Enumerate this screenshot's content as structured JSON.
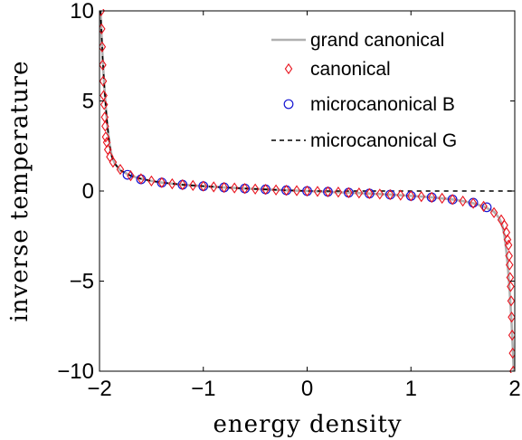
{
  "chart_data": {
    "type": "line",
    "xlabel": "energy density",
    "ylabel": "inverse temperature",
    "xlim": [
      -2,
      2
    ],
    "ylim": [
      -10,
      10
    ],
    "xticks": [
      -2,
      -1,
      0,
      1,
      2
    ],
    "xtick_labels": [
      "−2",
      "−1",
      "0",
      "1",
      "2"
    ],
    "yticks": [
      -10,
      -5,
      0,
      5,
      10
    ],
    "ytick_labels": [
      "−10",
      "−5",
      "0",
      "5",
      "10"
    ],
    "grid": false,
    "legend_position": "top-right",
    "series": [
      {
        "name": "grand canonical",
        "style": "solid-line",
        "color": "#b0b0b0",
        "x": [
          -1.99,
          -1.98,
          -1.97,
          -1.96,
          -1.95,
          -1.94,
          -1.93,
          -1.92,
          -1.91,
          -1.9,
          -1.88,
          -1.85,
          -1.8,
          -1.7,
          -1.6,
          -1.5,
          -1.4,
          -1.2,
          -1.0,
          -0.8,
          -0.6,
          -0.4,
          -0.2,
          0.0,
          0.2,
          0.4,
          0.6,
          0.8,
          1.0,
          1.2,
          1.4,
          1.5,
          1.6,
          1.7,
          1.8,
          1.85,
          1.88,
          1.9,
          1.91,
          1.92,
          1.93,
          1.94,
          1.95,
          1.96,
          1.97,
          1.98,
          1.99
        ],
        "y": [
          10.0,
          8.6,
          7.4,
          6.4,
          5.5,
          4.7,
          4.0,
          3.4,
          2.9,
          2.45,
          1.9,
          1.5,
          1.15,
          0.85,
          0.68,
          0.56,
          0.47,
          0.35,
          0.27,
          0.2,
          0.14,
          0.09,
          0.04,
          0.0,
          -0.04,
          -0.09,
          -0.14,
          -0.2,
          -0.27,
          -0.35,
          -0.47,
          -0.56,
          -0.68,
          -0.85,
          -1.15,
          -1.5,
          -1.9,
          -2.45,
          -2.9,
          -3.4,
          -4.0,
          -4.7,
          -5.5,
          -6.4,
          -7.4,
          -8.6,
          -10.0
        ]
      },
      {
        "name": "canonical",
        "style": "diamond-markers",
        "color": "#e8141e",
        "x": [
          -1.985,
          -1.98,
          -1.975,
          -1.97,
          -1.965,
          -1.96,
          -1.955,
          -1.95,
          -1.945,
          -1.94,
          -1.93,
          -1.92,
          -1.9,
          -1.87,
          -1.8,
          -1.7,
          -1.6,
          -1.5,
          -1.4,
          -1.3,
          -1.2,
          -1.1,
          -1.0,
          -0.9,
          -0.8,
          -0.7,
          -0.6,
          -0.5,
          -0.4,
          -0.3,
          -0.2,
          -0.1,
          0.0,
          0.1,
          0.2,
          0.3,
          0.4,
          0.5,
          0.6,
          0.7,
          0.8,
          0.9,
          1.0,
          1.1,
          1.2,
          1.3,
          1.4,
          1.5,
          1.6,
          1.7,
          1.8,
          1.87,
          1.9,
          1.92,
          1.93,
          1.94,
          1.945,
          1.95,
          1.955,
          1.96,
          1.965,
          1.97,
          1.975,
          1.98,
          1.985
        ],
        "y": [
          10.0,
          9.0,
          8.0,
          7.0,
          6.1,
          5.3,
          4.8,
          4.1,
          3.6,
          3.0,
          2.7,
          2.3,
          1.9,
          1.6,
          1.2,
          0.85,
          0.68,
          0.56,
          0.47,
          0.4,
          0.35,
          0.31,
          0.27,
          0.23,
          0.2,
          0.17,
          0.14,
          0.11,
          0.09,
          0.06,
          0.04,
          0.02,
          0.0,
          -0.02,
          -0.04,
          -0.06,
          -0.09,
          -0.11,
          -0.14,
          -0.17,
          -0.2,
          -0.23,
          -0.27,
          -0.31,
          -0.35,
          -0.4,
          -0.47,
          -0.56,
          -0.68,
          -0.85,
          -1.2,
          -1.6,
          -1.9,
          -2.3,
          -2.7,
          -3.0,
          -3.6,
          -4.1,
          -4.8,
          -5.3,
          -6.1,
          -7.0,
          -8.0,
          -9.0,
          -10.0
        ]
      },
      {
        "name": "microcanonical B",
        "style": "circle-markers",
        "color": "#1414d2",
        "x": [
          -1.73,
          -1.6,
          -1.4,
          -1.2,
          -1.0,
          -0.8,
          -0.6,
          -0.4,
          -0.2,
          0.0,
          0.2,
          0.4,
          0.6,
          0.8,
          1.0,
          1.2,
          1.4,
          1.6,
          1.73
        ],
        "y": [
          0.9,
          0.65,
          0.47,
          0.35,
          0.27,
          0.2,
          0.14,
          0.09,
          0.04,
          0.0,
          -0.04,
          -0.09,
          -0.14,
          -0.2,
          -0.27,
          -0.35,
          -0.47,
          -0.65,
          -0.9
        ]
      },
      {
        "name": "microcanonical G",
        "style": "dashed-line",
        "color": "#000000",
        "x": [
          -1.99,
          -1.97,
          -1.95,
          -1.93,
          -1.91,
          -1.89,
          -1.87,
          -1.85,
          -1.8,
          -1.7,
          -1.6,
          -1.5,
          -1.4,
          -1.2,
          -1.0,
          -0.8,
          -0.6,
          -0.4,
          -0.2,
          0.0,
          0.4,
          0.8,
          1.2,
          1.6,
          2.0
        ],
        "y": [
          10.0,
          7.4,
          5.5,
          4.0,
          2.9,
          2.1,
          1.7,
          1.5,
          1.15,
          0.85,
          0.68,
          0.56,
          0.47,
          0.35,
          0.27,
          0.2,
          0.14,
          0.09,
          0.04,
          0.0,
          0.0,
          0.0,
          0.0,
          0.0,
          0.0
        ]
      }
    ]
  }
}
